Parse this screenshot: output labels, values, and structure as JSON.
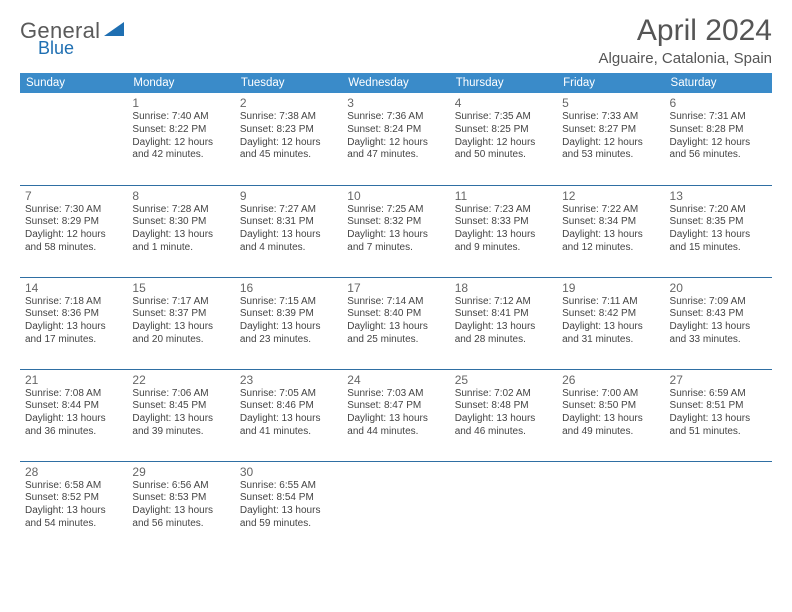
{
  "brand": {
    "part1": "General",
    "part2": "Blue"
  },
  "title": "April 2024",
  "location": "Alguaire, Catalonia, Spain",
  "colors": {
    "headerBg": "#3a8bc9",
    "headerText": "#ffffff",
    "rowDivider": "#2f6fa3",
    "bodyText": "#444444",
    "dayNum": "#666666",
    "titleText": "#555555",
    "logoGray": "#5a5a5a",
    "logoBlue": "#1f6fb2",
    "background": "#ffffff"
  },
  "fonts": {
    "title_pt": 30,
    "location_pt": 15,
    "header_pt": 11.5,
    "daynum_pt": 12,
    "cell_pt": 10
  },
  "dayHeaders": [
    "Sunday",
    "Monday",
    "Tuesday",
    "Wednesday",
    "Thursday",
    "Friday",
    "Saturday"
  ],
  "weeks": [
    [
      null,
      {
        "n": "1",
        "sr": "Sunrise: 7:40 AM",
        "ss": "Sunset: 8:22 PM",
        "d1": "Daylight: 12 hours",
        "d2": "and 42 minutes."
      },
      {
        "n": "2",
        "sr": "Sunrise: 7:38 AM",
        "ss": "Sunset: 8:23 PM",
        "d1": "Daylight: 12 hours",
        "d2": "and 45 minutes."
      },
      {
        "n": "3",
        "sr": "Sunrise: 7:36 AM",
        "ss": "Sunset: 8:24 PM",
        "d1": "Daylight: 12 hours",
        "d2": "and 47 minutes."
      },
      {
        "n": "4",
        "sr": "Sunrise: 7:35 AM",
        "ss": "Sunset: 8:25 PM",
        "d1": "Daylight: 12 hours",
        "d2": "and 50 minutes."
      },
      {
        "n": "5",
        "sr": "Sunrise: 7:33 AM",
        "ss": "Sunset: 8:27 PM",
        "d1": "Daylight: 12 hours",
        "d2": "and 53 minutes."
      },
      {
        "n": "6",
        "sr": "Sunrise: 7:31 AM",
        "ss": "Sunset: 8:28 PM",
        "d1": "Daylight: 12 hours",
        "d2": "and 56 minutes."
      }
    ],
    [
      {
        "n": "7",
        "sr": "Sunrise: 7:30 AM",
        "ss": "Sunset: 8:29 PM",
        "d1": "Daylight: 12 hours",
        "d2": "and 58 minutes."
      },
      {
        "n": "8",
        "sr": "Sunrise: 7:28 AM",
        "ss": "Sunset: 8:30 PM",
        "d1": "Daylight: 13 hours",
        "d2": "and 1 minute."
      },
      {
        "n": "9",
        "sr": "Sunrise: 7:27 AM",
        "ss": "Sunset: 8:31 PM",
        "d1": "Daylight: 13 hours",
        "d2": "and 4 minutes."
      },
      {
        "n": "10",
        "sr": "Sunrise: 7:25 AM",
        "ss": "Sunset: 8:32 PM",
        "d1": "Daylight: 13 hours",
        "d2": "and 7 minutes."
      },
      {
        "n": "11",
        "sr": "Sunrise: 7:23 AM",
        "ss": "Sunset: 8:33 PM",
        "d1": "Daylight: 13 hours",
        "d2": "and 9 minutes."
      },
      {
        "n": "12",
        "sr": "Sunrise: 7:22 AM",
        "ss": "Sunset: 8:34 PM",
        "d1": "Daylight: 13 hours",
        "d2": "and 12 minutes."
      },
      {
        "n": "13",
        "sr": "Sunrise: 7:20 AM",
        "ss": "Sunset: 8:35 PM",
        "d1": "Daylight: 13 hours",
        "d2": "and 15 minutes."
      }
    ],
    [
      {
        "n": "14",
        "sr": "Sunrise: 7:18 AM",
        "ss": "Sunset: 8:36 PM",
        "d1": "Daylight: 13 hours",
        "d2": "and 17 minutes."
      },
      {
        "n": "15",
        "sr": "Sunrise: 7:17 AM",
        "ss": "Sunset: 8:37 PM",
        "d1": "Daylight: 13 hours",
        "d2": "and 20 minutes."
      },
      {
        "n": "16",
        "sr": "Sunrise: 7:15 AM",
        "ss": "Sunset: 8:39 PM",
        "d1": "Daylight: 13 hours",
        "d2": "and 23 minutes."
      },
      {
        "n": "17",
        "sr": "Sunrise: 7:14 AM",
        "ss": "Sunset: 8:40 PM",
        "d1": "Daylight: 13 hours",
        "d2": "and 25 minutes."
      },
      {
        "n": "18",
        "sr": "Sunrise: 7:12 AM",
        "ss": "Sunset: 8:41 PM",
        "d1": "Daylight: 13 hours",
        "d2": "and 28 minutes."
      },
      {
        "n": "19",
        "sr": "Sunrise: 7:11 AM",
        "ss": "Sunset: 8:42 PM",
        "d1": "Daylight: 13 hours",
        "d2": "and 31 minutes."
      },
      {
        "n": "20",
        "sr": "Sunrise: 7:09 AM",
        "ss": "Sunset: 8:43 PM",
        "d1": "Daylight: 13 hours",
        "d2": "and 33 minutes."
      }
    ],
    [
      {
        "n": "21",
        "sr": "Sunrise: 7:08 AM",
        "ss": "Sunset: 8:44 PM",
        "d1": "Daylight: 13 hours",
        "d2": "and 36 minutes."
      },
      {
        "n": "22",
        "sr": "Sunrise: 7:06 AM",
        "ss": "Sunset: 8:45 PM",
        "d1": "Daylight: 13 hours",
        "d2": "and 39 minutes."
      },
      {
        "n": "23",
        "sr": "Sunrise: 7:05 AM",
        "ss": "Sunset: 8:46 PM",
        "d1": "Daylight: 13 hours",
        "d2": "and 41 minutes."
      },
      {
        "n": "24",
        "sr": "Sunrise: 7:03 AM",
        "ss": "Sunset: 8:47 PM",
        "d1": "Daylight: 13 hours",
        "d2": "and 44 minutes."
      },
      {
        "n": "25",
        "sr": "Sunrise: 7:02 AM",
        "ss": "Sunset: 8:48 PM",
        "d1": "Daylight: 13 hours",
        "d2": "and 46 minutes."
      },
      {
        "n": "26",
        "sr": "Sunrise: 7:00 AM",
        "ss": "Sunset: 8:50 PM",
        "d1": "Daylight: 13 hours",
        "d2": "and 49 minutes."
      },
      {
        "n": "27",
        "sr": "Sunrise: 6:59 AM",
        "ss": "Sunset: 8:51 PM",
        "d1": "Daylight: 13 hours",
        "d2": "and 51 minutes."
      }
    ],
    [
      {
        "n": "28",
        "sr": "Sunrise: 6:58 AM",
        "ss": "Sunset: 8:52 PM",
        "d1": "Daylight: 13 hours",
        "d2": "and 54 minutes."
      },
      {
        "n": "29",
        "sr": "Sunrise: 6:56 AM",
        "ss": "Sunset: 8:53 PM",
        "d1": "Daylight: 13 hours",
        "d2": "and 56 minutes."
      },
      {
        "n": "30",
        "sr": "Sunrise: 6:55 AM",
        "ss": "Sunset: 8:54 PM",
        "d1": "Daylight: 13 hours",
        "d2": "and 59 minutes."
      },
      null,
      null,
      null,
      null
    ]
  ]
}
